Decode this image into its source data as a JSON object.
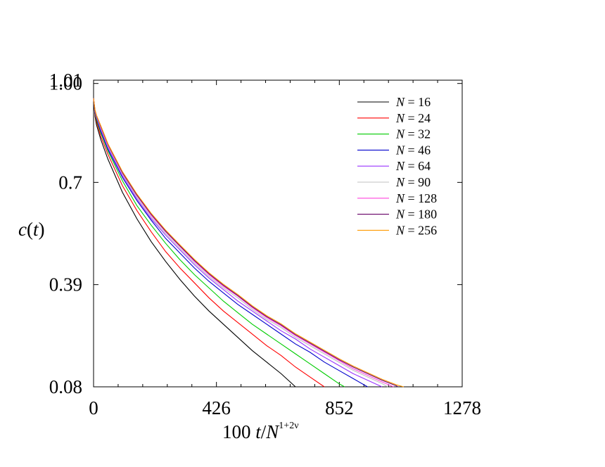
{
  "chart_data": {
    "type": "line",
    "xlabel": {
      "pre": "100 ",
      "italic": "t",
      "mid": "/",
      "italic2": "N",
      "sup": "1+2ν"
    },
    "ylabel": {
      "italic": "c",
      "pre": "(",
      "italic2": "t",
      "post": ")"
    },
    "xlim": [
      0,
      1278
    ],
    "ylim": [
      0.08,
      1.01
    ],
    "x_ticks": [
      "0",
      "426",
      "852",
      "1278"
    ],
    "y_ticks": [
      "0.08",
      "0.39",
      "0.7",
      "1.00",
      "1.01"
    ],
    "legend_position": "top-right",
    "series": [
      {
        "name": "N = 16",
        "prefix": "N",
        "label": " = 16",
        "color": "#000000",
        "x": [
          0,
          5,
          10,
          25,
          50,
          100,
          150,
          200,
          250,
          300,
          350,
          400,
          450,
          500,
          550,
          600,
          650,
          700
        ],
        "y": [
          0.955,
          0.9,
          0.875,
          0.83,
          0.77,
          0.67,
          0.59,
          0.52,
          0.46,
          0.405,
          0.355,
          0.31,
          0.27,
          0.23,
          0.19,
          0.155,
          0.12,
          0.08
        ]
      },
      {
        "name": "N = 24",
        "prefix": "N",
        "label": " = 24",
        "color": "#ff0000",
        "x": [
          0,
          5,
          10,
          25,
          50,
          100,
          150,
          200,
          250,
          300,
          350,
          400,
          450,
          500,
          550,
          600,
          650,
          700,
          750,
          800
        ],
        "y": [
          0.955,
          0.905,
          0.885,
          0.84,
          0.785,
          0.69,
          0.615,
          0.55,
          0.49,
          0.44,
          0.395,
          0.35,
          0.31,
          0.275,
          0.24,
          0.205,
          0.175,
          0.14,
          0.11,
          0.08
        ]
      },
      {
        "name": "N = 32",
        "prefix": "N",
        "label": " = 32",
        "color": "#00cc00",
        "x": [
          0,
          5,
          10,
          25,
          50,
          100,
          150,
          200,
          250,
          300,
          350,
          400,
          450,
          500,
          550,
          600,
          650,
          700,
          750,
          800,
          850,
          870
        ],
        "y": [
          0.955,
          0.91,
          0.89,
          0.85,
          0.795,
          0.705,
          0.63,
          0.57,
          0.515,
          0.465,
          0.42,
          0.38,
          0.34,
          0.305,
          0.27,
          0.24,
          0.21,
          0.18,
          0.15,
          0.12,
          0.09,
          0.08
        ]
      },
      {
        "name": "N = 46",
        "prefix": "N",
        "label": " = 46",
        "color": "#0000cc",
        "x": [
          0,
          5,
          10,
          25,
          50,
          100,
          150,
          200,
          250,
          300,
          350,
          400,
          450,
          500,
          550,
          600,
          650,
          700,
          750,
          800,
          850,
          900,
          950
        ],
        "y": [
          0.955,
          0.912,
          0.895,
          0.855,
          0.8,
          0.715,
          0.645,
          0.585,
          0.53,
          0.485,
          0.44,
          0.4,
          0.365,
          0.33,
          0.3,
          0.27,
          0.24,
          0.21,
          0.185,
          0.155,
          0.13,
          0.105,
          0.08
        ]
      },
      {
        "name": "N = 64",
        "prefix": "N",
        "label": " = 64",
        "color": "#9933ff",
        "x": [
          0,
          5,
          10,
          25,
          50,
          100,
          150,
          200,
          250,
          300,
          350,
          400,
          450,
          500,
          550,
          600,
          650,
          700,
          750,
          800,
          850,
          900,
          950,
          1000
        ],
        "y": [
          0.955,
          0.915,
          0.898,
          0.86,
          0.805,
          0.72,
          0.65,
          0.59,
          0.54,
          0.495,
          0.45,
          0.41,
          0.375,
          0.34,
          0.31,
          0.28,
          0.25,
          0.225,
          0.195,
          0.17,
          0.145,
          0.12,
          0.1,
          0.08
        ]
      },
      {
        "name": "N = 90",
        "prefix": "N",
        "label": " = 90",
        "color": "#c0c0c0",
        "x": [
          0,
          5,
          10,
          25,
          50,
          100,
          150,
          200,
          250,
          300,
          350,
          400,
          450,
          500,
          550,
          600,
          650,
          700,
          750,
          800,
          850,
          900,
          950,
          1000,
          1020
        ],
        "y": [
          0.955,
          0.917,
          0.9,
          0.865,
          0.81,
          0.725,
          0.655,
          0.595,
          0.545,
          0.5,
          0.455,
          0.415,
          0.38,
          0.35,
          0.315,
          0.285,
          0.26,
          0.23,
          0.205,
          0.18,
          0.155,
          0.13,
          0.11,
          0.09,
          0.08
        ]
      },
      {
        "name": "N = 128",
        "prefix": "N",
        "label": " = 128",
        "color": "#ff44dd",
        "x": [
          0,
          5,
          10,
          25,
          50,
          100,
          150,
          200,
          250,
          300,
          350,
          400,
          450,
          500,
          550,
          600,
          650,
          700,
          750,
          800,
          850,
          900,
          950,
          1000,
          1040
        ],
        "y": [
          0.955,
          0.918,
          0.902,
          0.868,
          0.813,
          0.728,
          0.66,
          0.6,
          0.55,
          0.505,
          0.46,
          0.42,
          0.385,
          0.355,
          0.32,
          0.29,
          0.265,
          0.235,
          0.21,
          0.185,
          0.16,
          0.135,
          0.115,
          0.095,
          0.08
        ]
      },
      {
        "name": "N = 180",
        "prefix": "N",
        "label": " = 180",
        "color": "#660066",
        "x": [
          0,
          5,
          10,
          25,
          50,
          100,
          150,
          200,
          250,
          300,
          350,
          400,
          450,
          500,
          550,
          600,
          650,
          700,
          750,
          800,
          850,
          900,
          950,
          1000,
          1050,
          1055
        ],
        "y": [
          0.955,
          0.919,
          0.903,
          0.87,
          0.815,
          0.73,
          0.662,
          0.603,
          0.552,
          0.507,
          0.463,
          0.423,
          0.388,
          0.357,
          0.323,
          0.293,
          0.268,
          0.238,
          0.213,
          0.188,
          0.163,
          0.14,
          0.12,
          0.1,
          0.083,
          0.08
        ]
      },
      {
        "name": "N = 256",
        "prefix": "N",
        "label": " = 256",
        "color": "#ff9900",
        "x": [
          0,
          5,
          10,
          25,
          50,
          100,
          150,
          200,
          250,
          300,
          350,
          400,
          450,
          500,
          550,
          600,
          650,
          700,
          750,
          800,
          850,
          900,
          950,
          1000,
          1050,
          1075
        ],
        "y": [
          0.955,
          0.92,
          0.904,
          0.872,
          0.817,
          0.733,
          0.665,
          0.606,
          0.555,
          0.51,
          0.466,
          0.426,
          0.391,
          0.36,
          0.326,
          0.296,
          0.271,
          0.241,
          0.216,
          0.191,
          0.166,
          0.143,
          0.123,
          0.103,
          0.086,
          0.08
        ]
      }
    ]
  }
}
